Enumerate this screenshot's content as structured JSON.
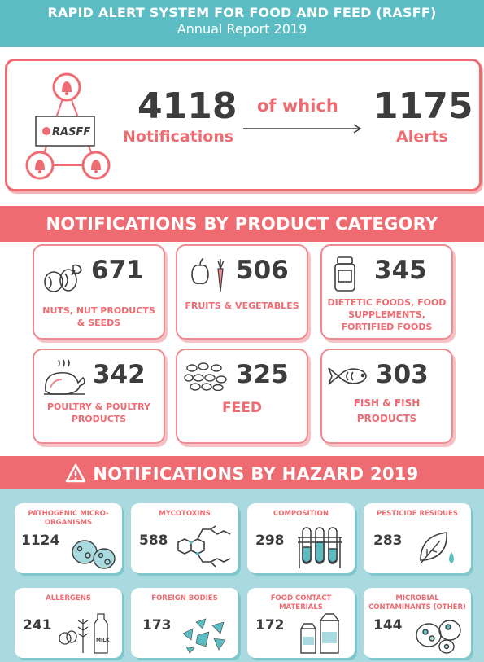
{
  "header": {
    "title": "RAPID ALERT SYSTEM FOR FOOD AND FEED (RASFF)",
    "subtitle": "Annual Report 2019"
  },
  "summary": {
    "logo_text": "RASFF",
    "notifications_value": "4118",
    "notifications_label": "Notifications",
    "connector": "of which",
    "alerts_value": "1175",
    "alerts_label": "Alerts"
  },
  "product_section": {
    "title": "NOTIFICATIONS BY PRODUCT CATEGORY",
    "items": [
      {
        "value": "671",
        "label": "NUTS, NUT PRODUCTS & SEEDS",
        "icon": "nuts-icon"
      },
      {
        "value": "506",
        "label": "FRUITS & VEGETABLES",
        "icon": "fruit-vegetable-icon"
      },
      {
        "value": "345",
        "label": "DIETETIC FOODS, FOOD SUPPLEMENTS, FORTIFIED FOODS",
        "icon": "supplement-jar-icon"
      },
      {
        "value": "342",
        "label": "POULTRY & POULTRY PRODUCTS",
        "icon": "roast-chicken-icon"
      },
      {
        "value": "325",
        "label": "FEED",
        "icon": "feed-pellets-icon"
      },
      {
        "value": "303",
        "label": "FISH & FISH PRODUCTS",
        "icon": "fish-icon"
      }
    ]
  },
  "hazard_section": {
    "title": "NOTIFICATIONS BY HAZARD 2019",
    "items": [
      {
        "value": "1124",
        "label": "PATHOGENIC MICRO-ORGANISMS",
        "icon": "petri-dish-icon"
      },
      {
        "value": "588",
        "label": "MYCOTOXINS",
        "icon": "molecule-icon"
      },
      {
        "value": "298",
        "label": "COMPOSITION",
        "icon": "test-tubes-icon"
      },
      {
        "value": "283",
        "label": "PESTICIDE RESIDUES",
        "icon": "leaf-drop-icon"
      },
      {
        "value": "241",
        "label": "ALLERGENS",
        "icon": "allergens-icon"
      },
      {
        "value": "173",
        "label": "FOREIGN BODIES",
        "icon": "shards-icon"
      },
      {
        "value": "172",
        "label": "FOOD CONTACT MATERIALS",
        "icon": "packaging-icon"
      },
      {
        "value": "144",
        "label": "MICROBIAL CONTAMINANTS (OTHER)",
        "icon": "microbes-icon"
      }
    ],
    "milk_label": "MILK"
  },
  "colors": {
    "teal": "#5bbcc4",
    "coral": "#ef6b72",
    "light_teal": "#a9dadf",
    "dark_text": "#3d3d3d"
  }
}
